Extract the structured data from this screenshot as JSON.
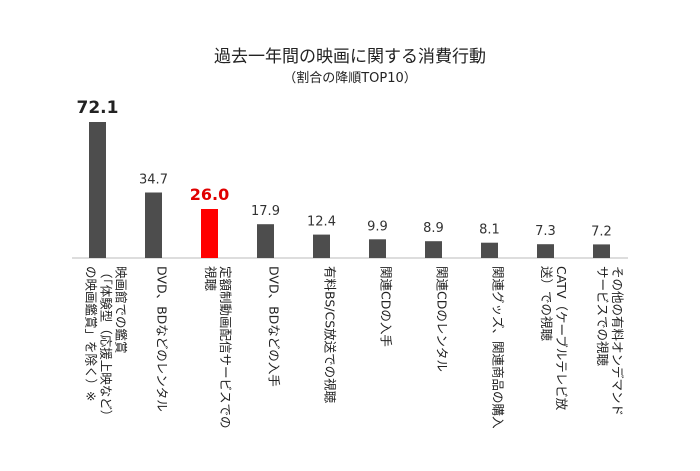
{
  "chart_data": {
    "type": "bar",
    "title": "過去一年間の映画に関する消費行動",
    "subtitle": "（割合の降順TOP10）",
    "categories": [
      [
        "映画館での鑑賞",
        "（「体験型（応援上映など）",
        "の映画鑑賞」を除く）※"
      ],
      [
        "DVD、BDなどのレンタル"
      ],
      [
        "定額制動画配信サービスでの",
        "視聴"
      ],
      [
        "DVD、BDなどの入手"
      ],
      [
        "有料BS/CS放送での視聴"
      ],
      [
        "関連CDの入手"
      ],
      [
        "関連CDのレンタル"
      ],
      [
        "関連グッズ、関連商品の購入"
      ],
      [
        "CATV（ケーブルテレビ放",
        "送）での視聴"
      ],
      [
        "その他の有料オンデマンド",
        "サービスでの視聴"
      ]
    ],
    "values": [
      72.1,
      34.7,
      26.0,
      17.9,
      12.4,
      9.9,
      8.9,
      8.1,
      7.3,
      7.2
    ],
    "value_labels": [
      "72.1",
      "34.7",
      "26.0",
      "17.9",
      "12.4",
      "9.9",
      "8.9",
      "8.1",
      "7.3",
      "7.2"
    ],
    "highlight_index": 2,
    "colors": {
      "bar": "#4d4d4d",
      "highlight": "#ff0000",
      "highlight_label": "#e00000"
    },
    "ylim": [
      0,
      72.1
    ],
    "grid": false,
    "legend": "none"
  }
}
